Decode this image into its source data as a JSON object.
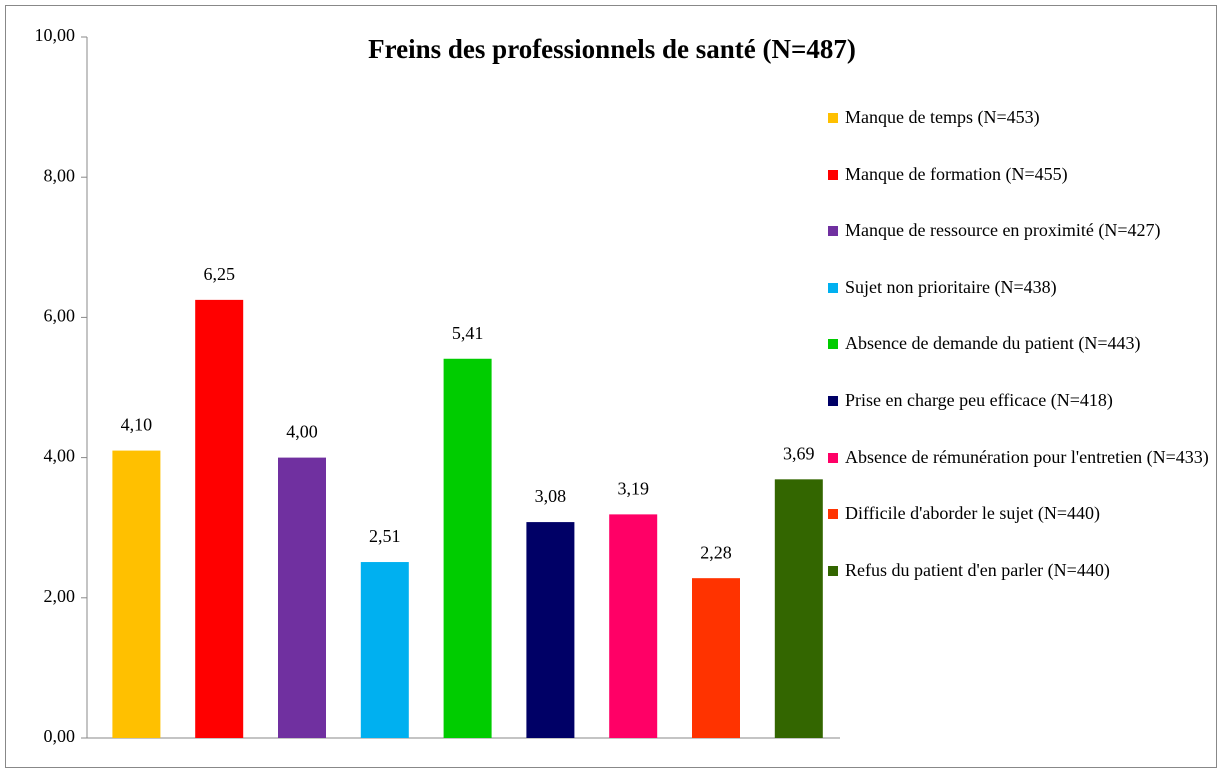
{
  "chart_data": {
    "type": "bar",
    "title": "Freins des professionnels de santé (N=487)",
    "series": [
      {
        "name": "Manque de temps (N=453)",
        "color": "#FFC000",
        "values": [
          4.1
        ],
        "value_labels": [
          "4,10"
        ]
      },
      {
        "name": "Manque de formation (N=455)",
        "color": "#FF0000",
        "values": [
          6.25
        ],
        "value_labels": [
          "6,25"
        ]
      },
      {
        "name": "Manque de ressource en proximité (N=427)",
        "color": "#7030A0",
        "values": [
          4.0
        ],
        "value_labels": [
          "4,00"
        ]
      },
      {
        "name": "Sujet non prioritaire (N=438)",
        "color": "#00B0F0",
        "values": [
          2.51
        ],
        "value_labels": [
          "2,51"
        ]
      },
      {
        "name": "Absence de demande du patient (N=443)",
        "color": "#00CC00",
        "values": [
          5.41
        ],
        "value_labels": [
          "5,41"
        ]
      },
      {
        "name": "Prise en charge peu efficace (N=418)",
        "color": "#000066",
        "values": [
          3.08
        ],
        "value_labels": [
          "3,08"
        ]
      },
      {
        "name": "Absence de rémunération pour l'entretien (N=433)",
        "color": "#FF0066",
        "values": [
          3.19
        ],
        "value_labels": [
          "3,19"
        ]
      },
      {
        "name": "Difficile d'aborder le sujet (N=440)",
        "color": "#FF3300",
        "values": [
          2.28
        ],
        "value_labels": [
          "2,28"
        ]
      },
      {
        "name": "Refus du patient d'en parler (N=440)",
        "color": "#336600",
        "values": [
          3.69
        ],
        "value_labels": [
          "3,69"
        ]
      }
    ],
    "ylim": [
      0,
      10
    ],
    "yticks": [
      {
        "value": 0,
        "label": "0,00"
      },
      {
        "value": 2,
        "label": "2,00"
      },
      {
        "value": 4,
        "label": "4,00"
      },
      {
        "value": 6,
        "label": "6,00"
      },
      {
        "value": 8,
        "label": "8,00"
      },
      {
        "value": 10,
        "label": "10,00"
      }
    ],
    "legend": "right"
  }
}
